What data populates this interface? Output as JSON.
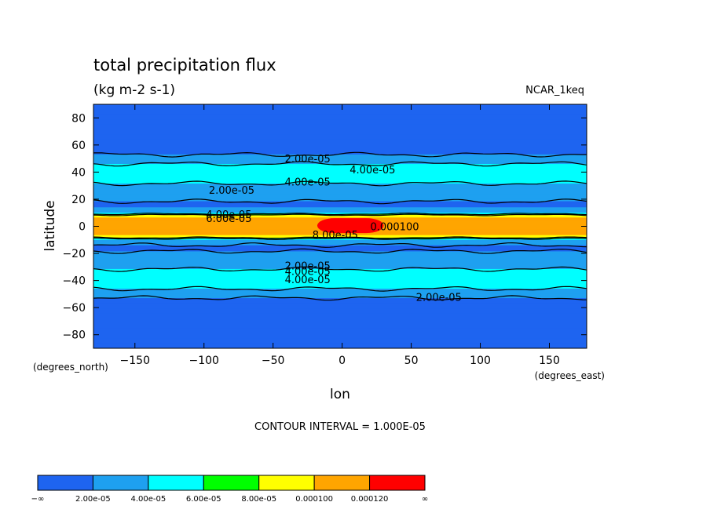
{
  "chart_data": {
    "type": "heatmap",
    "title": "total precipitation flux",
    "units": "(kg m-2 s-1)",
    "dataset": "NCAR_1keq",
    "xlabel": "lon",
    "ylabel": "latitude",
    "x_units": "(degrees_east)",
    "y_units": "(degrees_north)",
    "xlim": [
      -180,
      177
    ],
    "ylim": [
      -90,
      90
    ],
    "x_ticks": [
      -150,
      -100,
      -50,
      0,
      50,
      100,
      150
    ],
    "x_tick_labels": [
      "−150",
      "−100",
      "−50",
      "0",
      "50",
      "100",
      "150"
    ],
    "y_ticks": [
      80,
      60,
      40,
      20,
      0,
      -20,
      -40,
      -60,
      -80
    ],
    "y_tick_labels": [
      "80",
      "60",
      "40",
      "20",
      "0",
      "−20",
      "−40",
      "−60",
      "−80"
    ],
    "contour_interval_text": "CONTOUR INTERVAL = 1.000E-05",
    "colorbar": {
      "levels": [
        "−∞",
        "2.00e-05",
        "4.00e-05",
        "6.00e-05",
        "8.00e-05",
        "0.000100",
        "0.000120",
        "∞"
      ],
      "colors": [
        "#1e64f0",
        "#1ea0f0",
        "#00ffff",
        "#00ff00",
        "#ffff00",
        "#ffa500",
        "#ff0000"
      ]
    },
    "zonal_mean_profile": {
      "lat": [
        90,
        60,
        50,
        45,
        40,
        35,
        28,
        15,
        10,
        8,
        5,
        2,
        0,
        -2,
        -5,
        -8,
        -10,
        -15,
        -28,
        -35,
        -40,
        -45,
        -50,
        -60,
        -90
      ],
      "value": [
        1.2e-05,
        1.5e-05,
        2.2e-05,
        4.5e-05,
        5.5e-05,
        4.5e-05,
        3.5e-05,
        1.5e-05,
        4e-05,
        9e-05,
        0.00011,
        0.00011,
        0.00011,
        0.00011,
        0.00011,
        9e-05,
        4e-05,
        1.5e-05,
        3.5e-05,
        4.5e-05,
        5.5e-05,
        4.5e-05,
        2.2e-05,
        1.5e-05,
        1.2e-05
      ]
    },
    "contour_labels": [
      {
        "text": "2.00e-05",
        "lon": -25,
        "lat": 50
      },
      {
        "text": "4.00e-05",
        "lon": 22,
        "lat": 42
      },
      {
        "text": "4.00e-05",
        "lon": -25,
        "lat": 33
      },
      {
        "text": "2.00e-05",
        "lon": -80,
        "lat": 27
      },
      {
        "text": "4.00e-05",
        "lon": -82,
        "lat": 9
      },
      {
        "text": "6.00e-05",
        "lon": -82,
        "lat": 6
      },
      {
        "text": "0.000100",
        "lon": 38,
        "lat": 0
      },
      {
        "text": "8.00e-05",
        "lon": -5,
        "lat": -6
      },
      {
        "text": "2.00e-05",
        "lon": -25,
        "lat": -29
      },
      {
        "text": "4.00e-05",
        "lon": -25,
        "lat": -33
      },
      {
        "text": "4.00e-05",
        "lon": -25,
        "lat": -39
      },
      {
        "text": "2.00e-05",
        "lon": 70,
        "lat": -52
      }
    ]
  }
}
